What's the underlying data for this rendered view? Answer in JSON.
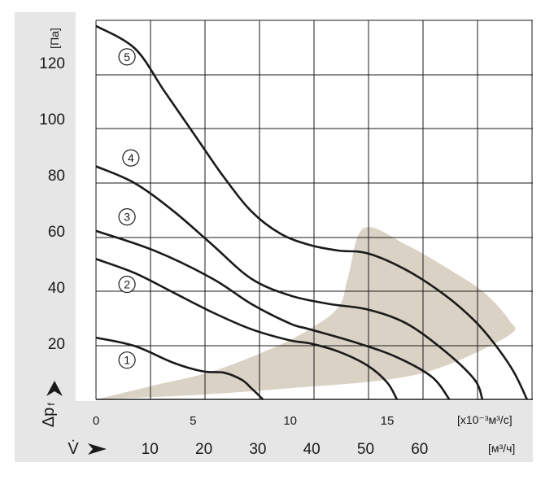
{
  "chart_data": {
    "type": "line",
    "ylabel": "Δp",
    "ylabel_sub": "f",
    "yunit": "[Па]",
    "ylim": [
      0,
      135
    ],
    "yticks": [
      20,
      40,
      60,
      80,
      100,
      120
    ],
    "xlabel": "V̇",
    "xunit_primary": "[x10⁻³м³/с]",
    "xlim_primary": [
      0,
      22.5
    ],
    "xticks_primary": [
      0,
      5,
      10,
      15
    ],
    "xunit_secondary": "[м³/ч]",
    "xticks_secondary": [
      10,
      20,
      30,
      40,
      50,
      60
    ],
    "grid": true,
    "operating_region": {
      "color": "#dbd2c6",
      "points": [
        [
          0,
          0
        ],
        [
          3,
          5
        ],
        [
          6,
          10
        ],
        [
          9,
          18
        ],
        [
          11,
          25
        ],
        [
          12.5,
          33
        ],
        [
          13,
          44
        ],
        [
          13.8,
          61
        ],
        [
          16,
          55
        ],
        [
          18.5,
          45
        ],
        [
          20,
          38
        ],
        [
          21.3,
          28
        ],
        [
          21.3,
          23
        ],
        [
          18,
          12
        ],
        [
          15,
          7
        ],
        [
          10,
          4
        ],
        [
          5,
          1.5
        ],
        [
          0,
          0
        ]
      ]
    },
    "series": [
      {
        "name": "1",
        "points": [
          [
            0,
            22
          ],
          [
            2,
            19
          ],
          [
            4,
            13
          ],
          [
            5.5,
            10
          ],
          [
            6.6,
            9.5
          ],
          [
            7.5,
            7
          ],
          [
            8,
            4
          ],
          [
            8.6,
            0
          ]
        ]
      },
      {
        "name": "2",
        "points": [
          [
            0,
            50
          ],
          [
            2,
            45
          ],
          [
            4,
            38
          ],
          [
            6,
            31
          ],
          [
            8,
            25
          ],
          [
            10,
            21
          ],
          [
            11,
            20
          ],
          [
            12.5,
            17
          ],
          [
            14,
            12
          ],
          [
            15,
            6
          ],
          [
            15.5,
            0
          ]
        ]
      },
      {
        "name": "3",
        "points": [
          [
            0,
            60
          ],
          [
            3,
            53
          ],
          [
            6,
            43
          ],
          [
            8,
            34
          ],
          [
            10,
            27
          ],
          [
            11,
            25
          ],
          [
            13.5,
            20
          ],
          [
            15.5,
            15
          ],
          [
            17.3,
            8
          ],
          [
            18.2,
            0
          ]
        ]
      },
      {
        "name": "4",
        "points": [
          [
            0,
            83
          ],
          [
            2,
            77
          ],
          [
            4,
            67
          ],
          [
            6,
            55
          ],
          [
            8,
            43
          ],
          [
            10,
            37
          ],
          [
            12,
            34
          ],
          [
            14,
            32
          ],
          [
            16,
            27
          ],
          [
            18,
            17
          ],
          [
            19.5,
            7
          ],
          [
            19.9,
            0
          ]
        ]
      },
      {
        "name": "5",
        "points": [
          [
            0,
            133
          ],
          [
            2,
            125
          ],
          [
            3.5,
            110
          ],
          [
            5,
            95
          ],
          [
            6.5,
            80
          ],
          [
            8,
            67
          ],
          [
            9.5,
            59
          ],
          [
            11,
            55
          ],
          [
            12.5,
            53
          ],
          [
            14,
            52
          ],
          [
            16,
            46
          ],
          [
            18,
            37
          ],
          [
            19.5,
            28
          ],
          [
            20.5,
            20
          ],
          [
            21.5,
            10
          ],
          [
            22.2,
            0
          ]
        ]
      }
    ],
    "curve_label_positions": [
      [
        0.8,
        14
      ],
      [
        0.8,
        41
      ],
      [
        0.8,
        65
      ],
      [
        1.0,
        86
      ],
      [
        0.8,
        122
      ]
    ]
  }
}
